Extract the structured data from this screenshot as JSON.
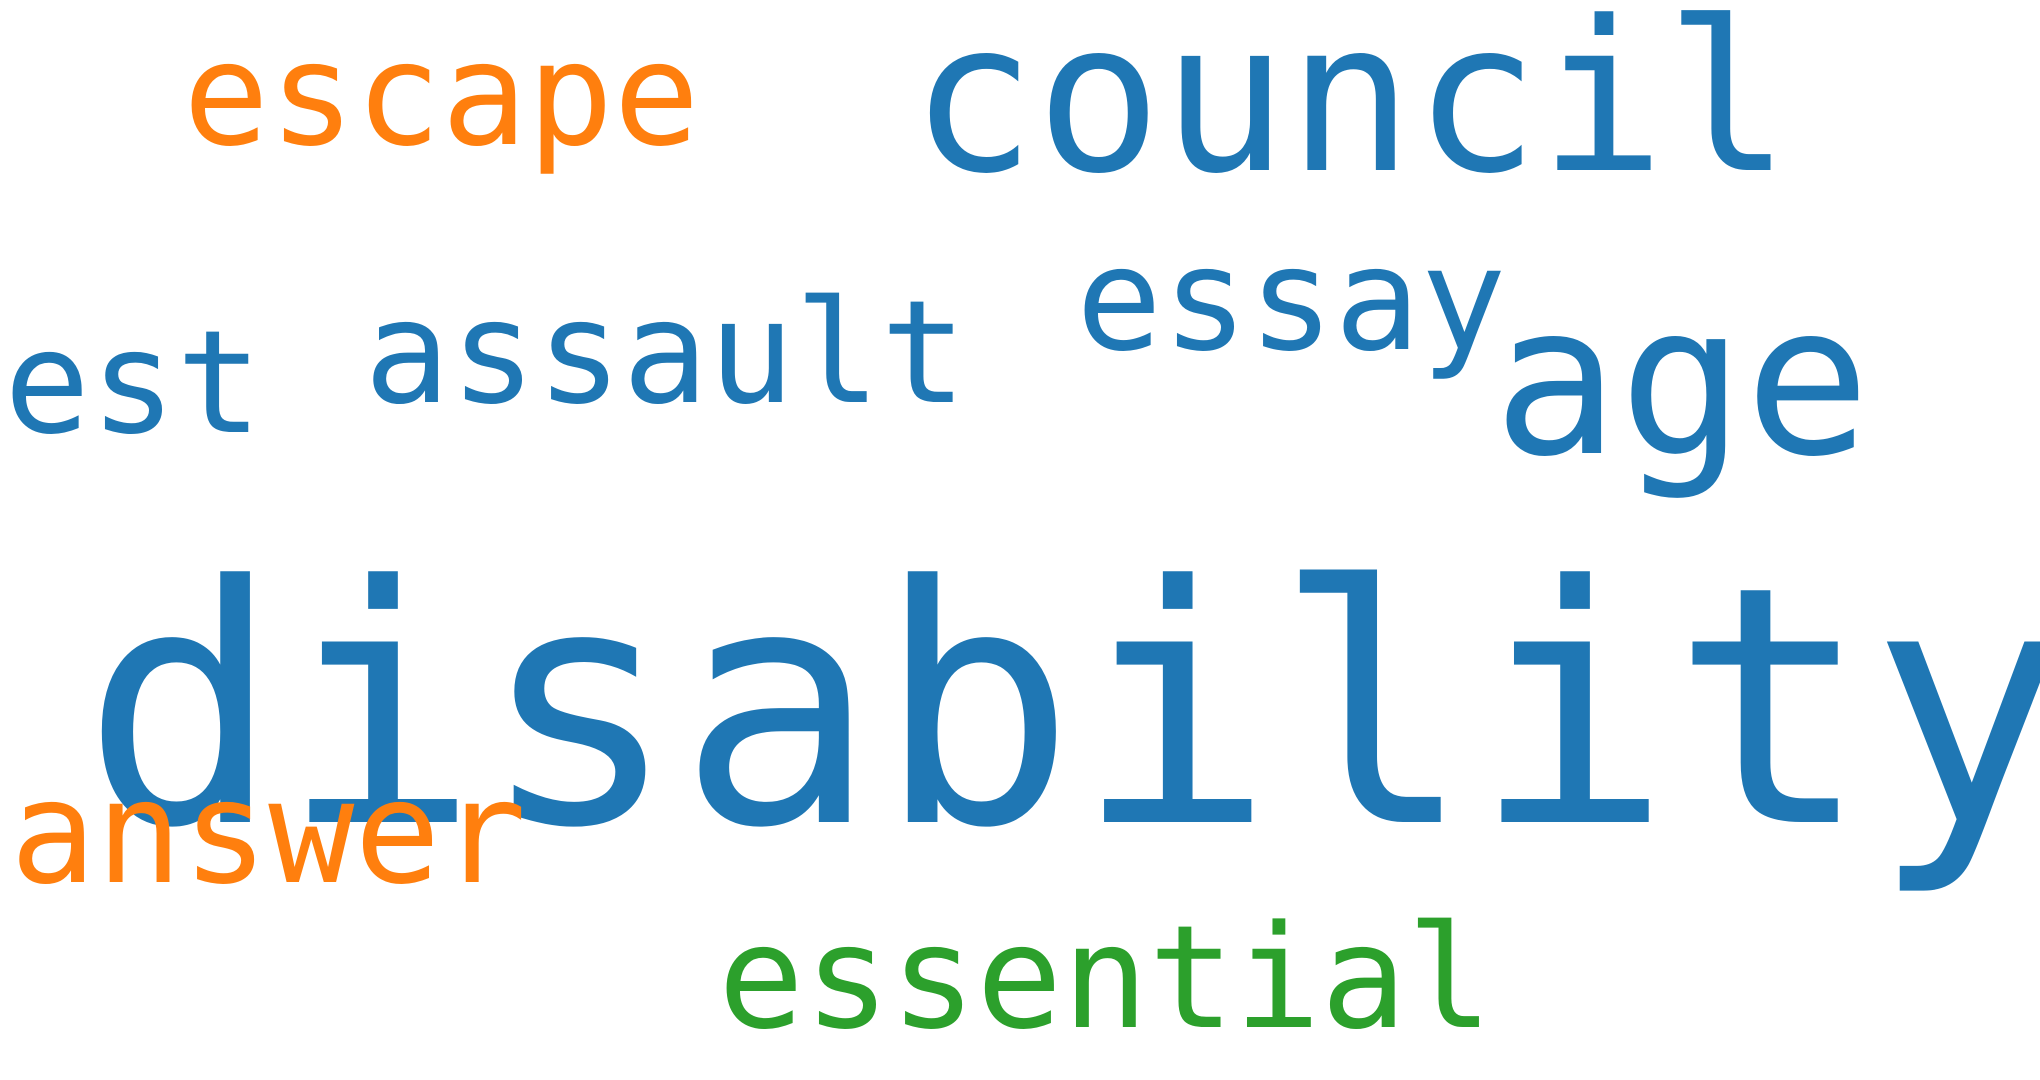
{
  "colors": {
    "blue": "#1f77b4",
    "orange": "#ff7f0e",
    "green": "#2ca02c",
    "background": "#ffffff"
  },
  "words": [
    {
      "text": "escape",
      "color": "#ff7f0e"
    },
    {
      "text": "council",
      "color": "#1f77b4"
    },
    {
      "text": "essay",
      "color": "#1f77b4"
    },
    {
      "text": "est",
      "color": "#1f77b4"
    },
    {
      "text": "assault",
      "color": "#1f77b4"
    },
    {
      "text": "age",
      "color": "#1f77b4"
    },
    {
      "text": "disability",
      "color": "#1f77b4"
    },
    {
      "text": "answer",
      "color": "#ff7f0e"
    },
    {
      "text": "essential",
      "color": "#2ca02c"
    }
  ]
}
